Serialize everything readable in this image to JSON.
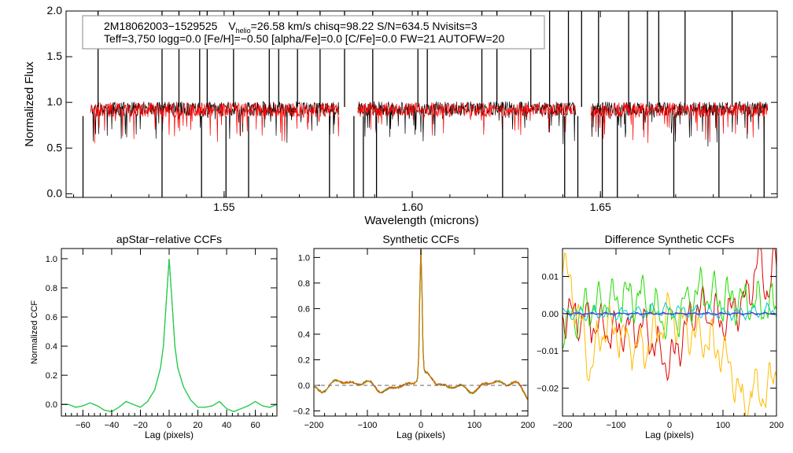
{
  "top_panel": {
    "info_line1": {
      "star_id": "2M18062003−1529525",
      "v_prefix": "V",
      "v_subscript": "helio",
      "v_rest": "=26.58 km/s  chisq=98.22  S/N=634.5  Nvisits=3"
    },
    "info_line2": "Teff=3,750 logg=0.0 [Fe/H]=−0.50 [alpha/Fe]=0.0 [C/Fe]=0.0 FW=21 AUTOFW=20"
  },
  "colors": {
    "observed": "#000000",
    "model": "#ff0000",
    "apstar_ccf": "#22cc44",
    "synthetic_ccf": "#b8860b",
    "diff_red": "#e00000",
    "diff_green": "#22dd00",
    "diff_orange": "#ffbb00",
    "diff_cyan": "#00cccc",
    "diff_blue": "#3344ff"
  },
  "chart_data": [
    {
      "type": "line",
      "title": "",
      "xlabel": "Wavelength (microns)",
      "ylabel": "Normalized Flux",
      "xlim": [
        1.508,
        1.697
      ],
      "ylim": [
        -0.04,
        2.0
      ],
      "xticks": [
        1.55,
        1.6,
        1.65
      ],
      "xtick_labels": [
        "1.55",
        "1.60",
        "1.65"
      ],
      "yticks": [
        0.0,
        0.5,
        1.0,
        1.5,
        2.0
      ],
      "ytick_labels": [
        "0.0",
        "0.5",
        "1.0",
        "1.5",
        "2.0"
      ],
      "chip_ranges": [
        [
          1.5145,
          1.5805
        ],
        [
          1.5855,
          1.6435
        ],
        [
          1.6475,
          1.6945
        ]
      ],
      "series": [
        {
          "name": "observed",
          "color": "#000000",
          "level": 0.93
        },
        {
          "name": "model",
          "color": "#ff0000",
          "level": 0.92
        }
      ],
      "spike_lines": [
        1.5165,
        1.5335,
        1.538,
        1.5435,
        1.5455,
        1.5525,
        1.562,
        1.5645,
        1.5695,
        1.5755,
        1.582,
        1.5895,
        1.6015,
        1.604,
        1.6185,
        1.6225,
        1.6315,
        1.6365,
        1.6415,
        1.645,
        1.6495,
        1.6575,
        1.6625,
        1.6655,
        1.6725,
        1.685
      ],
      "dip_lines": [
        1.5125,
        1.5335,
        1.544,
        1.5505,
        1.5565,
        1.578,
        1.5845,
        1.587,
        1.5905,
        1.624,
        1.6405,
        1.644,
        1.6505,
        1.6545,
        1.6695,
        1.6815,
        1.6935
      ]
    },
    {
      "type": "line",
      "title": "apStar−relative CCFs",
      "xlabel": "Lag (pixels)",
      "ylabel": "Normalized CCF",
      "xlim": [
        -75,
        75
      ],
      "ylim": [
        -0.08,
        1.07
      ],
      "xticks": [
        -60,
        -40,
        -20,
        0,
        20,
        40,
        60
      ],
      "xtick_labels": [
        "−60",
        "−40",
        "−20",
        "0",
        "20",
        "40",
        "60"
      ],
      "yticks": [
        0.0,
        0.2,
        0.4,
        0.6,
        0.8,
        1.0
      ],
      "ytick_labels": [
        "0.0",
        "0.2",
        "0.4",
        "0.6",
        "0.8",
        "1.0"
      ],
      "series": [
        {
          "name": "ccf",
          "color": "#22cc44",
          "peak": 1.0,
          "x": [
            -75,
            -70,
            -65,
            -60,
            -55,
            -50,
            -45,
            -40,
            -35,
            -30,
            -25,
            -20,
            -15,
            -10,
            -6,
            -4,
            -2,
            0,
            2,
            4,
            6,
            10,
            15,
            20,
            25,
            30,
            35,
            40,
            45,
            50,
            55,
            60,
            65,
            70,
            75
          ],
          "y": [
            0.0,
            0.0,
            -0.02,
            -0.01,
            0.01,
            -0.01,
            -0.04,
            -0.05,
            -0.02,
            0.02,
            0.0,
            -0.02,
            0.02,
            0.1,
            0.25,
            0.4,
            0.7,
            1.0,
            0.7,
            0.4,
            0.25,
            0.12,
            0.03,
            -0.02,
            -0.02,
            -0.01,
            0.02,
            -0.03,
            -0.05,
            -0.03,
            -0.01,
            0.02,
            -0.01,
            -0.02,
            0.0
          ]
        }
      ]
    },
    {
      "type": "line",
      "title": "Synthetic CCFs",
      "xlabel": "Lag (pixels)",
      "ylabel": "",
      "xlim": [
        -200,
        200
      ],
      "ylim": [
        -0.24,
        1.07
      ],
      "xticks": [
        -200,
        -100,
        0,
        100,
        200
      ],
      "xtick_labels": [
        "−200",
        "−100",
        "0",
        "100",
        "200"
      ],
      "yticks": [
        -0.2,
        0.0,
        0.2,
        0.4,
        0.6,
        0.8,
        1.0
      ],
      "ytick_labels": [
        "−0.2",
        "0.0",
        "0.2",
        "0.4",
        "0.6",
        "0.8",
        "1.0"
      ],
      "zero_line": 0.0,
      "series": [
        {
          "name": "ccf",
          "color": "#b8860b",
          "peak": 1.0
        }
      ]
    },
    {
      "type": "line",
      "title": "Difference Synthetic CCFs",
      "xlabel": "Lag (pixels)",
      "ylabel": "",
      "xlim": [
        -200,
        200
      ],
      "ylim": [
        -0.0275,
        0.0175
      ],
      "xticks": [
        -200,
        -100,
        0,
        100,
        200
      ],
      "xtick_labels": [
        "−200",
        "−100",
        "0",
        "100",
        "200"
      ],
      "yticks": [
        -0.02,
        -0.01,
        0.0,
        0.01
      ],
      "ytick_labels": [
        "−0.02",
        "−0.01",
        "0.00",
        "0.01"
      ],
      "zero_line": 0.0,
      "series": [
        {
          "name": "red",
          "color": "#e00000",
          "x": [
            -200,
            -150,
            -100,
            -50,
            0,
            50,
            100,
            150,
            165,
            180,
            200
          ],
          "y": [
            0.0,
            -0.002,
            -0.005,
            -0.003,
            -0.014,
            0.002,
            -0.002,
            0.005,
            0.016,
            0.006,
            0.014
          ]
        },
        {
          "name": "green",
          "color": "#22dd00",
          "x": [
            -200,
            -150,
            -100,
            -50,
            0,
            50,
            100,
            150,
            200
          ],
          "y": [
            -0.004,
            0.002,
            0.004,
            0.005,
            -0.003,
            0.006,
            0.004,
            0.003,
            0.002
          ]
        },
        {
          "name": "orange",
          "color": "#ffbb00",
          "x": [
            -200,
            -170,
            -150,
            -120,
            -100,
            -50,
            0,
            50,
            100,
            140,
            160,
            180,
            200
          ],
          "y": [
            0.015,
            0.0,
            -0.014,
            -0.003,
            -0.005,
            -0.01,
            0.0,
            -0.006,
            -0.01,
            -0.025,
            -0.02,
            -0.022,
            -0.015
          ]
        },
        {
          "name": "cyan",
          "color": "#00cccc",
          "x": [
            -200,
            -100,
            0,
            100,
            200
          ],
          "y": [
            0.0,
            0.0,
            0.001,
            0.0,
            0.001
          ]
        },
        {
          "name": "blue",
          "color": "#3344ff",
          "x": [
            -200,
            -100,
            0,
            100,
            200
          ],
          "y": [
            0.0,
            0.0,
            0.0,
            0.0,
            0.0
          ]
        }
      ]
    }
  ]
}
